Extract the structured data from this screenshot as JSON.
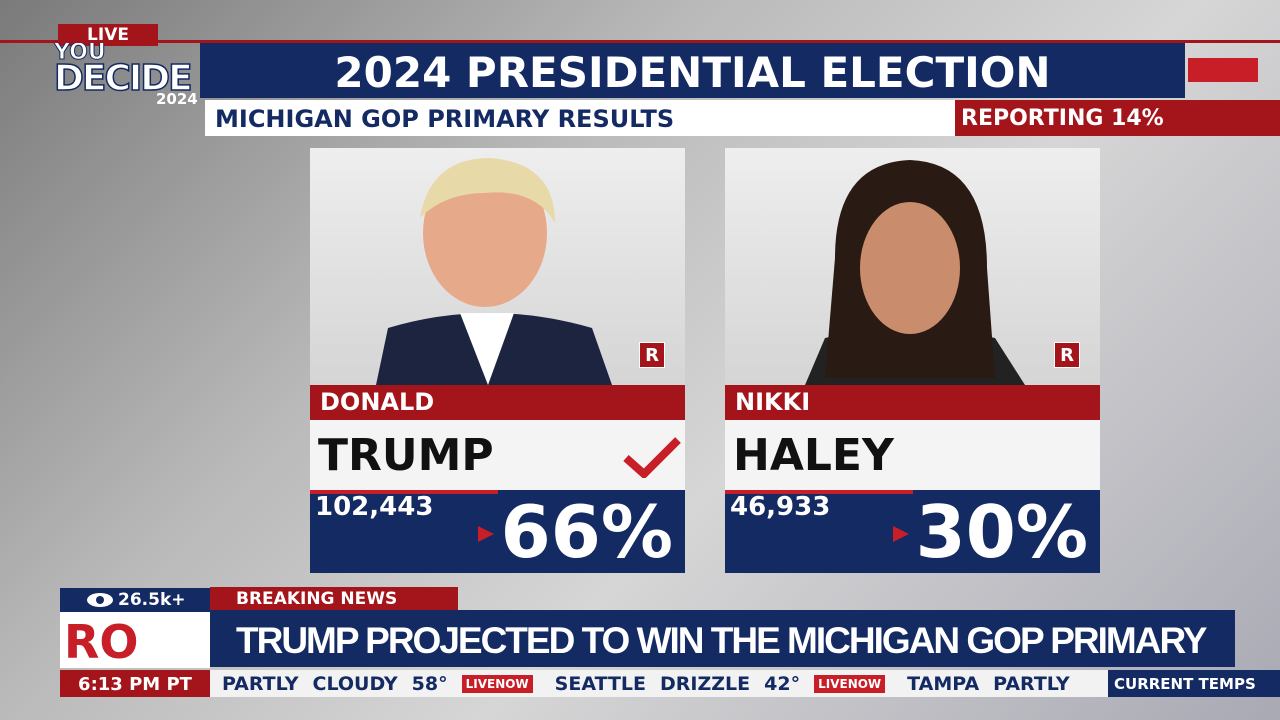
{
  "logo": {
    "live": "LIVE",
    "line1": "YOU",
    "line2": "DECIDE",
    "year": "2024"
  },
  "header": {
    "title": "2024 PRESIDENTIAL ELECTION",
    "subtitle": "MICHIGAN GOP PRIMARY RESULTS",
    "reporting": "REPORTING 14%"
  },
  "candidates": [
    {
      "first": "DONALD",
      "last": "TRUMP",
      "party": "R",
      "votes": "102,443",
      "percent": "66%"
    },
    {
      "first": "NIKKI",
      "last": "HALEY",
      "party": "R",
      "votes": "46,933",
      "percent": "30%"
    }
  ],
  "lower_third": {
    "views": "26.5k+",
    "label": "BREAKING NEWS",
    "headline": "TRUMP PROJECTED TO WIN THE MICHIGAN GOP PRIMARY",
    "station": "RO",
    "time": "6:13 PM PT",
    "ticker": [
      "PARTLY",
      "CLOUDY",
      "58°",
      "LIVENOW",
      "SEATTLE",
      "DRIZZLE",
      "42°",
      "LIVENOW",
      "TAMPA",
      "PARTLY"
    ],
    "ticker_label": "CURRENT TEMPS"
  }
}
